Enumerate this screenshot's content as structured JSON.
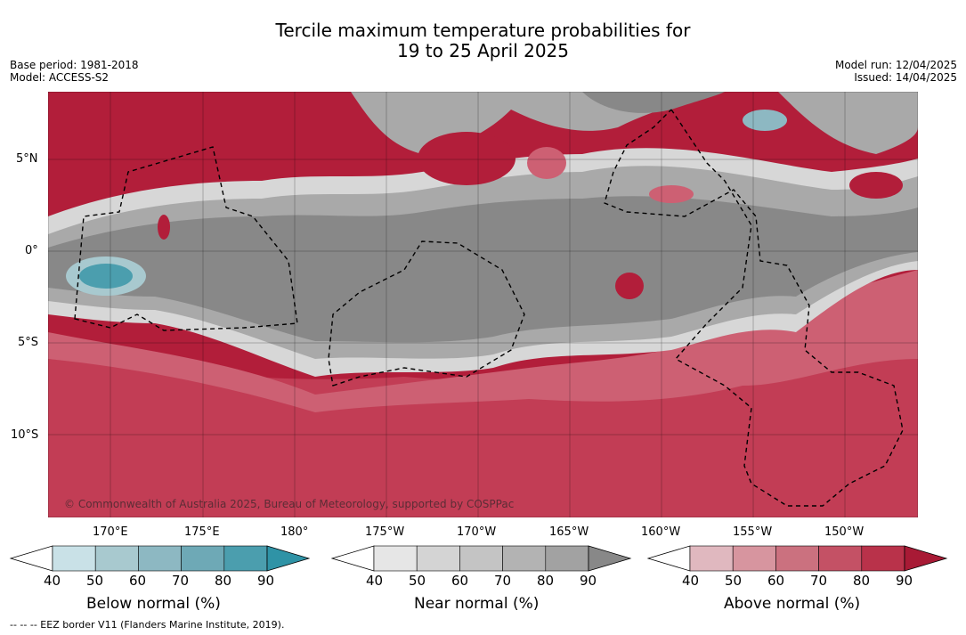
{
  "title": {
    "line1": "Tercile maximum temperature probabilities for",
    "line2": "19 to 25 April 2025"
  },
  "meta": {
    "base_period": "Base period: 1981-2018",
    "model": "Model: ACCESS-S2",
    "model_run": "Model run: 12/04/2025",
    "issued": "Issued: 14/04/2025"
  },
  "map": {
    "lat_labels": [
      "5°N",
      "0°",
      "5°S",
      "10°S"
    ],
    "lon_labels": [
      "170°E",
      "175°E",
      "180°",
      "175°W",
      "170°W",
      "165°W",
      "160°W",
      "155°W",
      "150°W"
    ],
    "copyright": "© Commonwealth of Australia 2025, Bureau of Meteorology, supported by COSPPac",
    "colors": {
      "above_dark": "#b21e3a",
      "above_mid": "#cf5a6c",
      "near_dark": "#8a8a8a",
      "near_light": "#d4d4d4",
      "below": "#4aa3b2"
    }
  },
  "colorbars": [
    {
      "name": "below",
      "label": "Below normal (%)",
      "ticks": [
        "40",
        "50",
        "60",
        "70",
        "80",
        "90"
      ],
      "colors": [
        "#c9e1e7",
        "#a8c9cf",
        "#8db8c2",
        "#6ea9b6",
        "#4b9eae",
        "#2f93a6"
      ]
    },
    {
      "name": "near",
      "label": "Near normal (%)",
      "ticks": [
        "40",
        "50",
        "60",
        "70",
        "80",
        "90"
      ],
      "colors": [
        "#e6e6e6",
        "#d4d4d4",
        "#c4c4c4",
        "#b3b3b3",
        "#a2a2a2",
        "#888888"
      ]
    },
    {
      "name": "above",
      "label": "Above normal (%)",
      "ticks": [
        "40",
        "50",
        "60",
        "70",
        "80",
        "90"
      ],
      "colors": [
        "#e0b8bf",
        "#d7959f",
        "#cb717f",
        "#c45165",
        "#b9324a",
        "#a81a35"
      ]
    }
  ],
  "footnote": "--  --  -- EEZ border V11 (Flanders Marine Institute, 2019)."
}
